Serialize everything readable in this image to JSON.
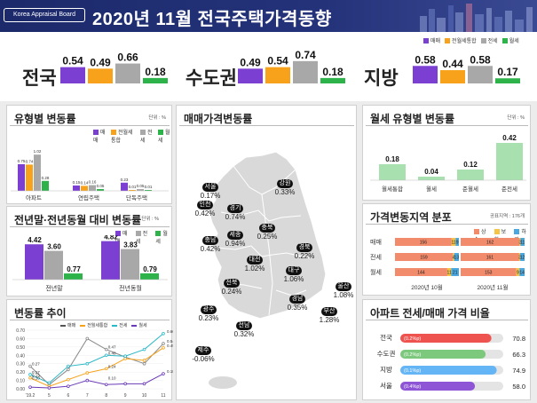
{
  "header": {
    "brand": "Korea Appraisal Board",
    "title": "2020년 11월  전국주택가격동향"
  },
  "colors": {
    "sale": "#7b3fd1",
    "composite": "#f7a21a",
    "jeonse": "#a8a8a8",
    "wolse": "#2db34a"
  },
  "legend": {
    "sale": "매매",
    "composite": "전월세통합",
    "jeonse": "전세",
    "wolse": "월세"
  },
  "summary": [
    {
      "region": "전국",
      "values": [
        0.54,
        0.49,
        0.66,
        0.18
      ]
    },
    {
      "region": "수도권",
      "values": [
        0.49,
        0.54,
        0.74,
        0.18
      ]
    },
    {
      "region": "지방",
      "values": [
        0.58,
        0.44,
        0.58,
        0.17
      ]
    }
  ],
  "type_change": {
    "title": "유형별 변동률",
    "unit": "단위 : %",
    "chart_data": {
      "type": "bar",
      "categories": [
        "아파트",
        "연립주택",
        "단독주택"
      ],
      "series": [
        {
          "name": "매매",
          "values": [
            0.75,
            0.15,
            0.23
          ]
        },
        {
          "name": "전월세통합",
          "values": [
            0.74,
            0.14,
            0.01
          ]
        },
        {
          "name": "전세",
          "values": [
            1.02,
            0.16,
            0.05
          ]
        },
        {
          "name": "월세",
          "values": [
            0.28,
            0.05,
            0.01
          ]
        }
      ]
    }
  },
  "yearly": {
    "title": "전년말·전년동월 대비 변동률",
    "unit": "단위 : %",
    "chart_data": {
      "type": "bar",
      "categories": [
        "전년말",
        "전년동월"
      ],
      "series": [
        {
          "name": "매매",
          "values": [
            4.42,
            4.82
          ]
        },
        {
          "name": "전세",
          "values": [
            3.6,
            3.83
          ]
        },
        {
          "name": "월세",
          "values": [
            0.77,
            0.79
          ]
        }
      ]
    }
  },
  "trend": {
    "title": "변동률 추이",
    "chart_data": {
      "type": "line",
      "x": [
        "'19.2",
        "5",
        "6",
        "7",
        "8",
        "9",
        "10",
        "11"
      ],
      "yticks": [
        "0.00",
        "0.10",
        "0.20",
        "0.30",
        "0.40",
        "0.50",
        "0.60",
        "0.70"
      ],
      "ylim": [
        0,
        0.7
      ],
      "series": [
        {
          "name": "매매",
          "values": [
            0.27,
            0.05,
            0.23,
            0.6,
            0.47,
            0.38,
            0.3,
            0.54
          ]
        },
        {
          "name": "전월세통합",
          "values": [
            0.13,
            0.03,
            0.11,
            0.19,
            0.24,
            0.36,
            0.34,
            0.49
          ]
        },
        {
          "name": "전세",
          "values": [
            0.17,
            0.07,
            0.27,
            0.3,
            0.4,
            0.39,
            0.47,
            0.66
          ]
        },
        {
          "name": "월세",
          "values": [
            0.02,
            0.01,
            0.03,
            0.1,
            0.05,
            0.06,
            0.06,
            0.18
          ]
        }
      ],
      "labels": [
        "0.27",
        "0.17",
        "0.13",
        "0.10",
        "0.47",
        "0.40",
        "0.24",
        "0.10",
        "0.66",
        "0.54",
        "0.49",
        "0.18"
      ]
    }
  },
  "map": {
    "title": "매매가격변동률",
    "regions": [
      {
        "name": "서울",
        "value": "0.17%"
      },
      {
        "name": "인천",
        "value": "0.42%"
      },
      {
        "name": "경기",
        "value": "0.74%"
      },
      {
        "name": "강원",
        "value": "0.33%"
      },
      {
        "name": "세종",
        "value": "0.94%"
      },
      {
        "name": "충남",
        "value": "0.42%"
      },
      {
        "name": "충북",
        "value": "0.25%"
      },
      {
        "name": "대전",
        "value": "1.02%"
      },
      {
        "name": "경북",
        "value": "0.22%"
      },
      {
        "name": "전북",
        "value": "0.24%"
      },
      {
        "name": "대구",
        "value": "1.06%"
      },
      {
        "name": "울산",
        "value": "1.08%"
      },
      {
        "name": "경남",
        "value": "0.35%"
      },
      {
        "name": "부산",
        "value": "1.28%"
      },
      {
        "name": "광주",
        "value": "0.23%"
      },
      {
        "name": "전남",
        "value": "0.32%"
      },
      {
        "name": "제주",
        "value": "-0.06%"
      }
    ]
  },
  "wolse_type": {
    "title": "월세 유형별 변동률",
    "unit": "단위 : %",
    "chart_data": {
      "type": "bar",
      "categories": [
        "월세통합",
        "월세",
        "준월세",
        "준전세"
      ],
      "values": [
        0.18,
        0.04,
        0.12,
        0.42
      ]
    }
  },
  "distribution": {
    "title": "가격변동지역 분포",
    "unit": "공표지역 : 176개",
    "legend": [
      "상승",
      "보합",
      "하락"
    ],
    "colors": [
      "#f28b6b",
      "#f6c343",
      "#4aa8e0"
    ],
    "chart_data": {
      "type": "bar",
      "categories": [
        "매매",
        "전세",
        "월세"
      ],
      "periods": [
        "2020년 10월",
        "2020년 11월"
      ],
      "series": [
        {
          "name": "2020년 10월",
          "rows": [
            [
              156,
              11,
              9
            ],
            [
              159,
              4,
              13
            ],
            [
              144,
              11,
              21
            ]
          ]
        },
        {
          "name": "2020년 11월",
          "rows": [
            [
              162,
              3,
              11
            ],
            [
              161,
              3,
              12
            ],
            [
              153,
              9,
              14
            ]
          ]
        }
      ]
    }
  },
  "ratio": {
    "title": "아파트 전세/매매 가격 비율",
    "chart_data": {
      "type": "bar",
      "categories": [
        "전국",
        "수도권",
        "지방",
        "서울"
      ],
      "values": [
        70.8,
        66.3,
        74.9,
        58.0
      ],
      "changes": [
        "(0.2%p)",
        "(0.2%p)",
        "(0.1%p)",
        "(0.4%p)"
      ],
      "value_labels": [
        "70.8",
        "66.3",
        "74.9",
        "58.0"
      ],
      "colors": [
        "#ef5350",
        "#7cc87c",
        "#64b5f6",
        "#8e55d6"
      ]
    }
  }
}
